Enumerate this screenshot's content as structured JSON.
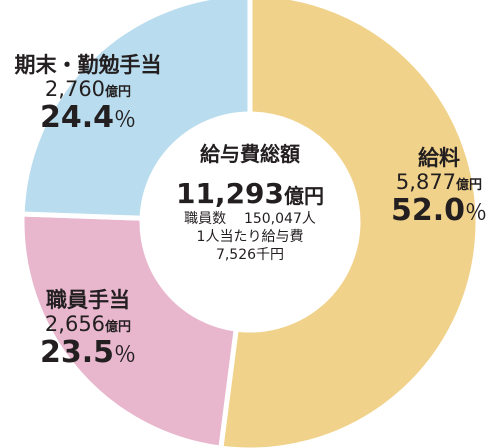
{
  "chart_data": {
    "type": "pie",
    "donut": true,
    "title": "給与費総額",
    "total_value": "11,293",
    "total_unit": "億円",
    "notes": [
      {
        "label": "職員数",
        "value": "150,047人"
      },
      {
        "label": "1人当たり給与費",
        "value": ""
      },
      {
        "label": "",
        "value": "7,526千円"
      }
    ],
    "slices": [
      {
        "name": "給料",
        "value": 5877,
        "amount": "5,877",
        "unit": "億円",
        "percent_value": "52.0",
        "percent_sign": "％",
        "color": "#f0d28a"
      },
      {
        "name": "職員手当",
        "value": 2656,
        "amount": "2,656",
        "unit": "億円",
        "percent_value": "23.5",
        "percent_sign": "％",
        "color": "#e8b7cd"
      },
      {
        "name": "期末・勤勉手当",
        "value": 2760,
        "amount": "2,760",
        "unit": "億円",
        "percent_value": "24.4",
        "percent_sign": "％",
        "color": "#b9dcee"
      }
    ]
  }
}
